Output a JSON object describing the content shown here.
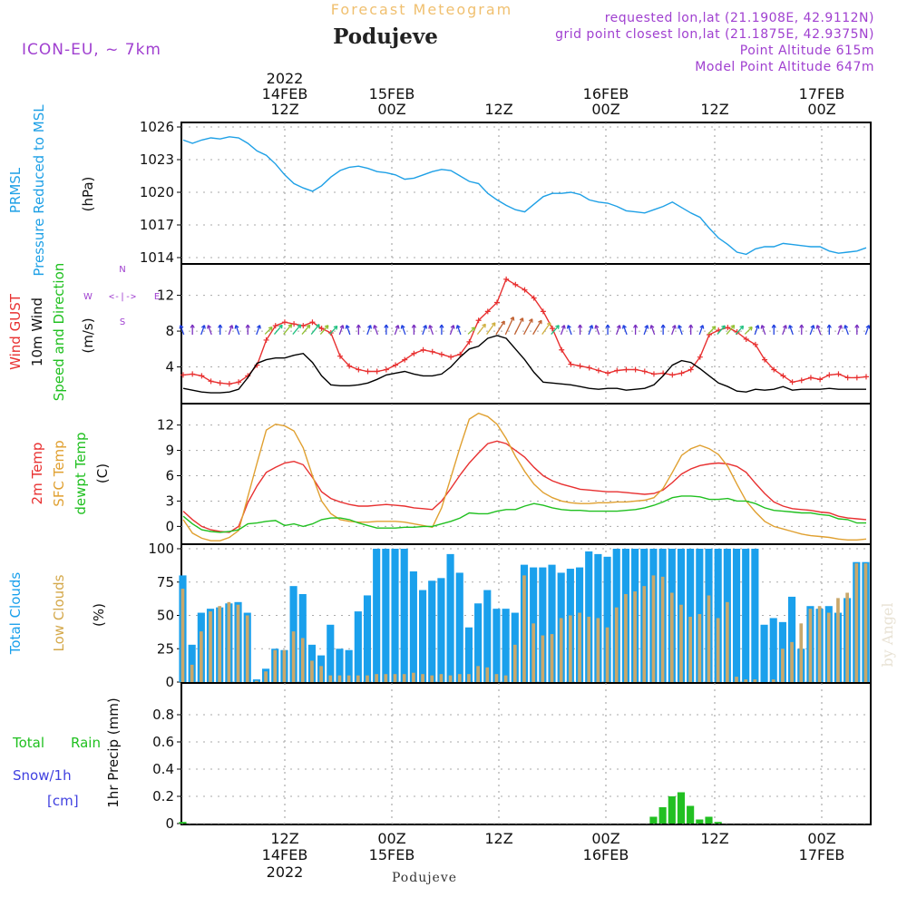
{
  "header": {
    "subtitle": "Forecast Meteogram",
    "location": "Podujeve",
    "model": "ICON-EU, ~ 7km",
    "requested": "requested lon,lat (21.1908E, 42.9112N)",
    "grid": "grid point closest lon,lat (21.1875E, 42.9375N)",
    "point_alt": "Point Altitude 615m",
    "model_alt": "Model Point Altitude 647m",
    "footer": "Podujeve",
    "watermark": "by Angel"
  },
  "time_axis": {
    "year": "2022",
    "top_ticks": [
      "12Z",
      "00Z",
      "12Z",
      "00Z",
      "12Z",
      "00Z"
    ],
    "top_dates": [
      "14FEB",
      "15FEB",
      "",
      "16FEB",
      "",
      "17FEB"
    ],
    "bottom_ticks": [
      "12Z",
      "00Z",
      "12Z",
      "00Z",
      "12Z",
      "00Z"
    ],
    "bottom_dates": [
      "14FEB",
      "15FEB",
      "",
      "16FEB",
      "",
      "17FEB"
    ]
  },
  "chart_data": [
    {
      "type": "line",
      "title": "PRMSL Pressure Reduced to MSL",
      "label_lines": [
        "PRMSL",
        "Pressure Reduced to MSL"
      ],
      "ylabel": "(hPa)",
      "ylim": [
        1013.5,
        1026
      ],
      "yticks": [
        1014,
        1017,
        1020,
        1023,
        1026
      ],
      "series": [
        {
          "name": "PRMSL",
          "color": "#1ea0e6",
          "values": [
            1024.8,
            1024.5,
            1024.8,
            1025.0,
            1024.9,
            1025.1,
            1025.0,
            1024.5,
            1023.8,
            1023.4,
            1022.6,
            1021.6,
            1020.8,
            1020.4,
            1020.1,
            1020.6,
            1021.4,
            1022.0,
            1022.3,
            1022.4,
            1022.2,
            1021.9,
            1021.8,
            1021.6,
            1021.2,
            1021.3,
            1021.6,
            1021.9,
            1022.1,
            1022.0,
            1021.5,
            1021.0,
            1020.8,
            1019.9,
            1019.3,
            1018.8,
            1018.4,
            1018.2,
            1018.9,
            1019.6,
            1019.9,
            1019.9,
            1020.0,
            1019.8,
            1019.3,
            1019.1,
            1019.0,
            1018.7,
            1018.3,
            1018.2,
            1018.1,
            1018.4,
            1018.7,
            1019.1,
            1018.6,
            1018.1,
            1017.7,
            1016.7,
            1015.8,
            1015.2,
            1014.5,
            1014.3,
            1014.8,
            1015.0,
            1015.0,
            1015.3,
            1015.2,
            1015.1,
            1015.0,
            1015.0,
            1014.6,
            1014.4,
            1014.5,
            1014.6,
            1014.9
          ]
        }
      ]
    },
    {
      "type": "line",
      "title": "Wind GUST / 10m Wind Speed and Direction",
      "label_lines": [
        "Wind GUST",
        "10m Wind",
        "Speed and Direction"
      ],
      "ylabel": "(m/s)",
      "ylim": [
        0,
        15
      ],
      "yticks": [
        4,
        8,
        12
      ],
      "direction_key": {
        "n": "N",
        "s": "S",
        "w": "W",
        "e": "E",
        "arrow": "<-|->"
      },
      "series": [
        {
          "name": "Wind GUST",
          "color": "#e83030",
          "values": [
            3.1,
            3.2,
            3.0,
            2.4,
            2.2,
            2.1,
            2.3,
            3.0,
            4.2,
            7.0,
            8.6,
            9.0,
            8.8,
            8.6,
            9.0,
            8.3,
            7.8,
            5.2,
            4.1,
            3.7,
            3.5,
            3.5,
            3.7,
            4.2,
            4.8,
            5.5,
            5.9,
            5.7,
            5.4,
            5.1,
            5.4,
            6.8,
            9.2,
            10.2,
            11.2,
            13.8,
            13.2,
            12.6,
            11.7,
            10.2,
            8.3,
            5.9,
            4.3,
            4.1,
            3.9,
            3.6,
            3.3,
            3.6,
            3.7,
            3.7,
            3.5,
            3.2,
            3.3,
            3.1,
            3.3,
            3.7,
            5.1,
            7.6,
            8.1,
            8.4,
            7.9,
            7.1,
            6.5,
            4.8,
            3.7,
            3.0,
            2.3,
            2.5,
            2.8,
            2.6,
            3.1,
            3.2,
            2.8,
            2.8,
            2.9
          ]
        },
        {
          "name": "10m Wind",
          "color": "#000000",
          "values": [
            1.6,
            1.4,
            1.2,
            1.1,
            1.1,
            1.2,
            1.5,
            2.8,
            4.4,
            4.8,
            5.0,
            5.0,
            5.3,
            5.5,
            4.5,
            3.0,
            2.0,
            1.9,
            1.9,
            2.0,
            2.2,
            2.6,
            3.1,
            3.3,
            3.5,
            3.2,
            3.0,
            3.0,
            3.2,
            4.0,
            5.1,
            6.0,
            6.3,
            7.2,
            7.5,
            7.2,
            6.0,
            4.8,
            3.4,
            2.3,
            2.2,
            2.1,
            2.0,
            1.8,
            1.6,
            1.5,
            1.6,
            1.6,
            1.4,
            1.5,
            1.6,
            2.0,
            3.0,
            4.2,
            4.7,
            4.5,
            3.8,
            3.0,
            2.2,
            1.8,
            1.3,
            1.2,
            1.5,
            1.4,
            1.5,
            1.8,
            1.4,
            1.5,
            1.5,
            1.5,
            1.6,
            1.5,
            1.5,
            1.5,
            1.5
          ]
        }
      ]
    },
    {
      "type": "line",
      "title": "2m Temp / SFC Temp / dewpt Temp",
      "label_lines": [
        "2m Temp",
        "SFC Temp",
        "dewpt Temp"
      ],
      "ylabel": "(C)",
      "ylim": [
        -2,
        14
      ],
      "yticks": [
        0,
        3,
        6,
        9,
        12
      ],
      "series": [
        {
          "name": "2m Temp",
          "color": "#e83030",
          "values": [
            1.8,
            0.8,
            0.0,
            -0.4,
            -0.6,
            -0.7,
            0.0,
            2.8,
            4.8,
            6.4,
            7.0,
            7.5,
            7.7,
            7.3,
            5.8,
            4.1,
            3.3,
            2.9,
            2.6,
            2.4,
            2.4,
            2.5,
            2.6,
            2.5,
            2.4,
            2.2,
            2.1,
            2.0,
            3.0,
            4.5,
            6.1,
            7.5,
            8.7,
            9.8,
            10.1,
            9.8,
            9.0,
            8.2,
            7.0,
            6.0,
            5.4,
            5.0,
            4.7,
            4.4,
            4.3,
            4.2,
            4.1,
            4.1,
            4.0,
            3.9,
            3.8,
            3.9,
            4.3,
            5.2,
            6.2,
            6.8,
            7.2,
            7.4,
            7.5,
            7.4,
            7.1,
            6.4,
            5.1,
            3.9,
            2.9,
            2.4,
            2.1,
            2.0,
            1.9,
            1.7,
            1.6,
            1.2,
            1.0,
            0.9,
            0.8
          ]
        },
        {
          "name": "SFC Temp",
          "color": "#e0a030",
          "values": [
            0.8,
            -0.8,
            -1.4,
            -1.7,
            -1.7,
            -1.3,
            -0.5,
            3.5,
            7.5,
            11.4,
            12.1,
            11.9,
            11.3,
            9.3,
            6.0,
            3.0,
            1.5,
            0.8,
            0.6,
            0.5,
            0.5,
            0.6,
            0.6,
            0.6,
            0.5,
            0.3,
            0.1,
            -0.1,
            2.2,
            5.8,
            9.4,
            12.7,
            13.4,
            13.0,
            12.1,
            10.4,
            8.3,
            6.5,
            5.0,
            4.0,
            3.4,
            3.0,
            2.8,
            2.7,
            2.7,
            2.8,
            2.8,
            2.9,
            2.9,
            3.0,
            3.1,
            3.4,
            4.5,
            6.4,
            8.4,
            9.2,
            9.6,
            9.2,
            8.5,
            7.1,
            5.0,
            3.0,
            1.7,
            0.6,
            0.0,
            -0.3,
            -0.6,
            -0.9,
            -1.1,
            -1.2,
            -1.3,
            -1.5,
            -1.6,
            -1.6,
            -1.5
          ]
        },
        {
          "name": "dewpt Temp",
          "color": "#20c020",
          "values": [
            1.2,
            0.3,
            -0.4,
            -0.6,
            -0.7,
            -0.6,
            -0.4,
            0.3,
            0.4,
            0.6,
            0.7,
            0.1,
            0.3,
            0.0,
            0.3,
            0.8,
            1.0,
            1.0,
            0.8,
            0.4,
            0.1,
            -0.2,
            -0.2,
            -0.2,
            -0.1,
            -0.1,
            0.0,
            0.0,
            0.3,
            0.6,
            1.0,
            1.6,
            1.5,
            1.5,
            1.8,
            2.0,
            2.0,
            2.4,
            2.7,
            2.5,
            2.2,
            2.0,
            1.9,
            1.9,
            1.8,
            1.8,
            1.8,
            1.8,
            1.9,
            2.0,
            2.2,
            2.5,
            2.9,
            3.4,
            3.6,
            3.6,
            3.5,
            3.2,
            3.2,
            3.3,
            3.0,
            3.0,
            2.7,
            2.2,
            1.9,
            1.8,
            1.7,
            1.6,
            1.6,
            1.4,
            1.3,
            0.9,
            0.8,
            0.4,
            0.4
          ]
        }
      ]
    },
    {
      "type": "bar",
      "title": "Total Clouds / Low Clouds",
      "label_lines": [
        "Total Clouds",
        "Low Clouds"
      ],
      "ylabel": "(%)",
      "ylim": [
        0,
        100
      ],
      "yticks": [
        0,
        25,
        50,
        75,
        100
      ],
      "series": [
        {
          "name": "Total Clouds",
          "color": "#1aa0ec",
          "values": [
            80,
            28,
            52,
            55,
            56,
            59,
            60,
            52,
            2,
            10,
            25,
            24,
            72,
            66,
            28,
            20,
            43,
            25,
            24,
            53,
            65,
            100,
            100,
            100,
            100,
            83,
            69,
            76,
            78,
            96,
            82,
            41,
            59,
            69,
            55,
            55,
            52,
            88,
            86,
            86,
            88,
            82,
            85,
            86,
            98,
            96,
            94,
            100,
            100,
            100,
            100,
            100,
            100,
            100,
            100,
            100,
            100,
            100,
            100,
            100,
            100,
            100,
            100,
            43,
            48,
            45,
            64,
            25,
            57,
            55,
            57,
            52,
            63,
            90,
            90
          ]
        },
        {
          "name": "Low Clouds",
          "color": "#c9a86b",
          "values": [
            70,
            13,
            38,
            53,
            57,
            60,
            58,
            50,
            1,
            8,
            24,
            24,
            38,
            33,
            16,
            12,
            5,
            5,
            5,
            5,
            5,
            6,
            6,
            6,
            6,
            7,
            6,
            5,
            6,
            5,
            6,
            6,
            12,
            11,
            6,
            5,
            28,
            80,
            44,
            35,
            36,
            48,
            50,
            52,
            49,
            48,
            41,
            56,
            66,
            68,
            72,
            80,
            79,
            67,
            58,
            49,
            51,
            65,
            48,
            60,
            4,
            2,
            2,
            0,
            2,
            25,
            30,
            44,
            55,
            57,
            52,
            63,
            67,
            89,
            89
          ]
        }
      ]
    },
    {
      "type": "bar",
      "title": "1hr Precip (mm)",
      "label_lines": [
        "Total",
        "Rain",
        "Snow/1h",
        "[cm]"
      ],
      "ylabel": "1hr Precip (mm)",
      "ylim": [
        0,
        1.0
      ],
      "yticks": [
        0,
        0.2,
        0.4,
        0.6,
        0.8
      ],
      "series": [
        {
          "name": "Total Rain",
          "color": "#22c022",
          "values": [
            0.012,
            0,
            0,
            0,
            0,
            0,
            0,
            0,
            0,
            0,
            0,
            0,
            0,
            0,
            0,
            0,
            0,
            0,
            0,
            0,
            0,
            0,
            0,
            0,
            0,
            0,
            0,
            0,
            0,
            0,
            0,
            0,
            0,
            0,
            0,
            0,
            0,
            0,
            0,
            0,
            0,
            0,
            0,
            0,
            0,
            0,
            0,
            0,
            0,
            0,
            0,
            0.05,
            0.12,
            0.2,
            0.23,
            0.13,
            0.03,
            0.05,
            0.012,
            0,
            0,
            0,
            0,
            0,
            0,
            0,
            0,
            0,
            0,
            0,
            0,
            0,
            0,
            0,
            0
          ]
        }
      ]
    }
  ]
}
